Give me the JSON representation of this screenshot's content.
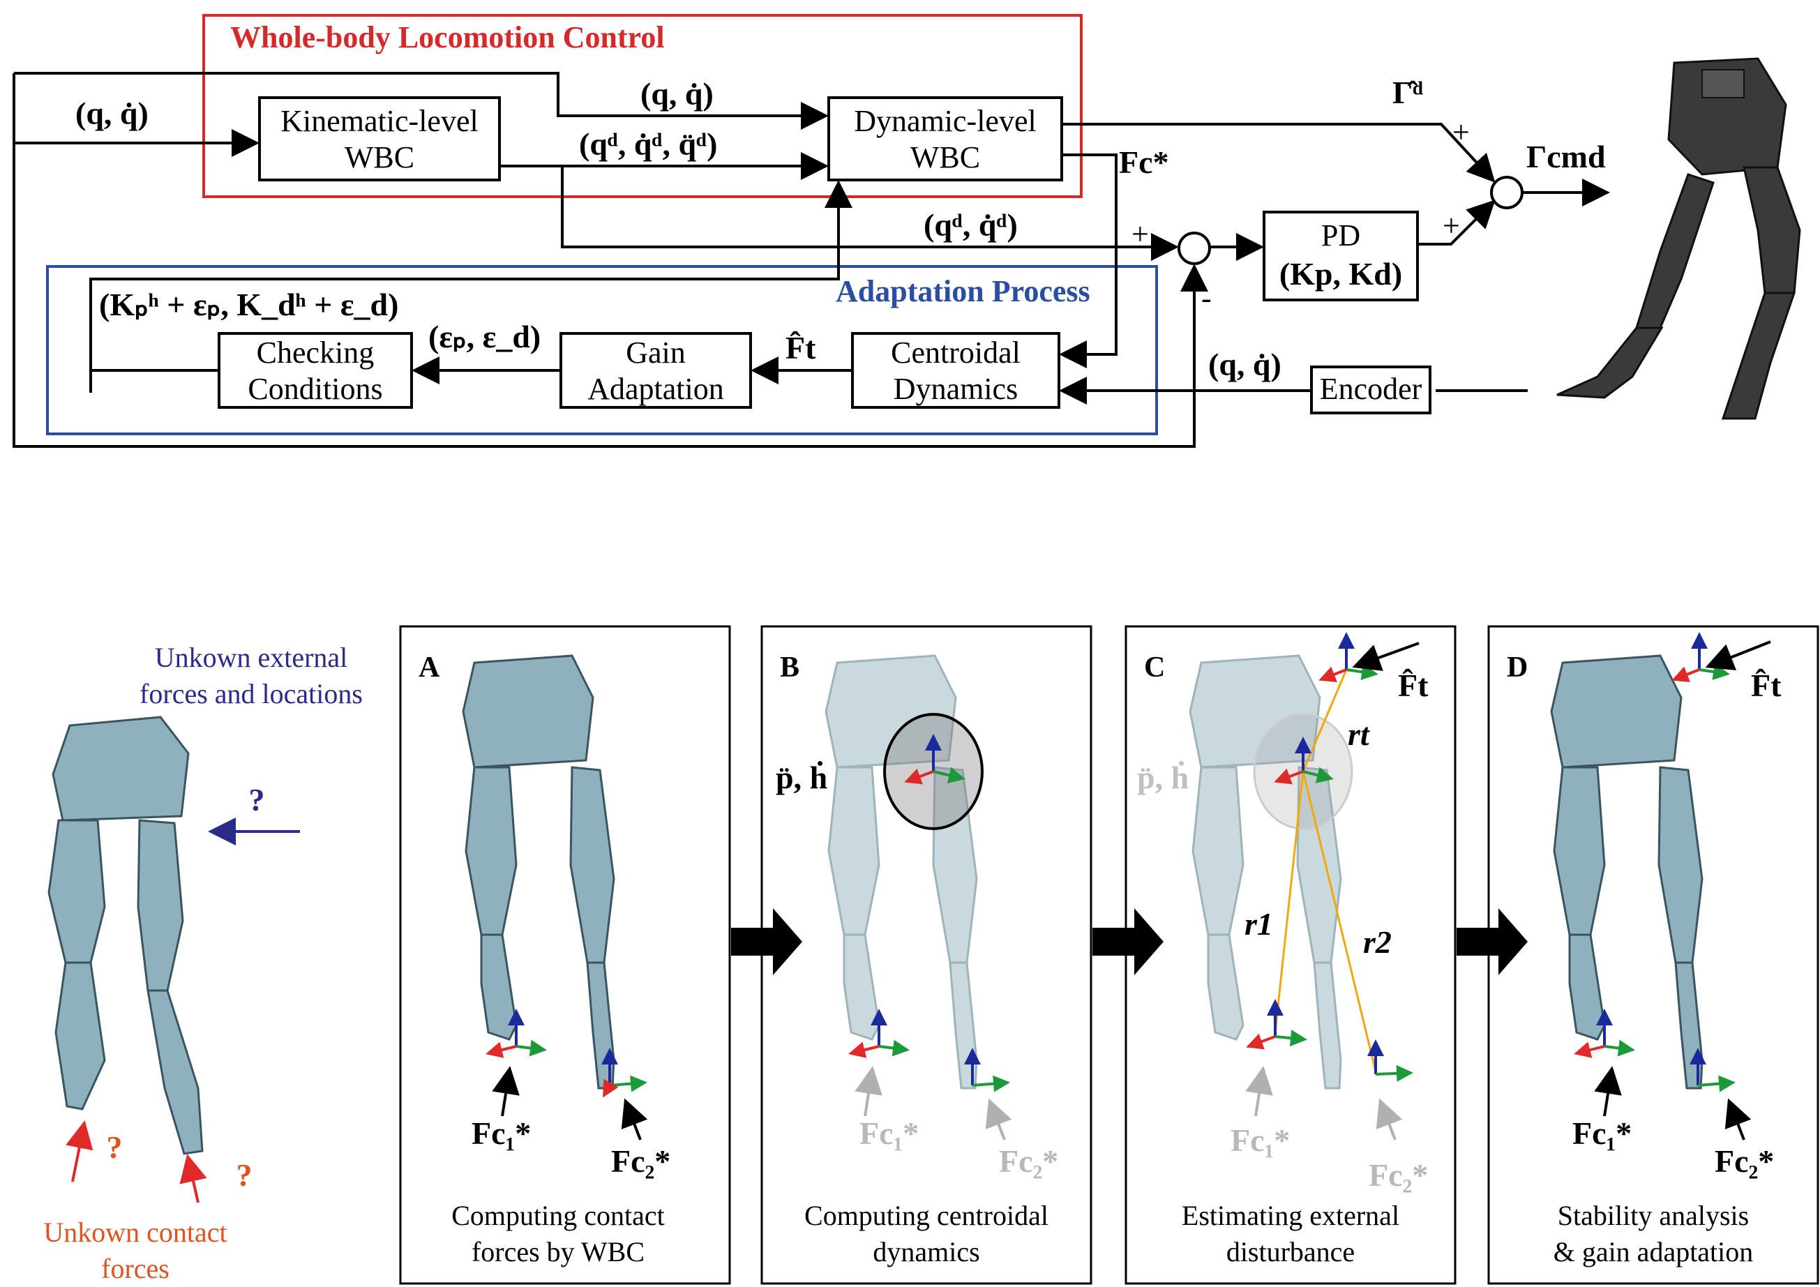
{
  "top_diagram": {
    "wbc_title": "Whole-body Locomotion Control",
    "adaptation_title": "Adaptation Process",
    "blocks": {
      "kinematic": [
        "Kinematic-level",
        "WBC"
      ],
      "dynamic": [
        "Dynamic-level",
        "WBC"
      ],
      "pd": [
        "PD",
        "(Kp, Kd)"
      ],
      "checking": [
        "Checking",
        "Conditions"
      ],
      "gain": [
        "Gain",
        "Adaptation"
      ],
      "centroidal": [
        "Centroidal",
        "Dynamics"
      ],
      "encoder": "Encoder"
    },
    "signals": {
      "q_in": "(q, q̇)",
      "q_top": "(q, q̇)",
      "q_desired_full": "(qᵈ, q̇ᵈ, q̈ᵈ)",
      "q_desired_pd": "(qᵈ, q̇ᵈ)",
      "gamma_d": "Γ̂ᵈ",
      "gamma_cmd": "Γcmd",
      "fc_star": "Fc*",
      "gains_updated": "(Kₚʰ + εₚ, K_dʰ + ε_d)",
      "eps": "(εₚ, ε_d)",
      "ft_hat": "F̂t",
      "q_encoder": "(q, q̇)",
      "plus1": "+",
      "plus2": "+",
      "plus3": "+",
      "minus": "-"
    }
  },
  "bottom": {
    "left_label_top": [
      "Unkown external",
      "forces and locations"
    ],
    "left_label_bottom": [
      "Unkown contact",
      "forces"
    ],
    "question": "?",
    "panels": [
      {
        "letter": "A",
        "caption": [
          "Computing contact",
          "forces by WBC"
        ],
        "f1": "Fc₁*",
        "f2": "Fc₂*"
      },
      {
        "letter": "B",
        "caption": [
          "Computing centroidal",
          "dynamics"
        ],
        "f1": "Fc₁*",
        "f2": "Fc₂*",
        "pdot": "p̈, ḣ"
      },
      {
        "letter": "C",
        "caption": [
          "Estimating external",
          "disturbance"
        ],
        "f1": "Fc₁*",
        "f2": "Fc₂*",
        "pdot": "p̈, ḣ",
        "ft": "F̂t",
        "rt": "rt",
        "r1": "r1",
        "r2": "r2"
      },
      {
        "letter": "D",
        "caption": [
          "Stability analysis",
          "& gain adaptation"
        ],
        "f1": "Fc₁*",
        "f2": "Fc₂*",
        "ft": "F̂t"
      }
    ]
  },
  "colors": {
    "wbc_box": "#d42a2a",
    "adapt_box": "#2a4ea0",
    "external_text": "#2a2a8a",
    "contact_text": "#e0531f",
    "contact_arrow": "#e02a2a",
    "trace": "#f0a810"
  }
}
